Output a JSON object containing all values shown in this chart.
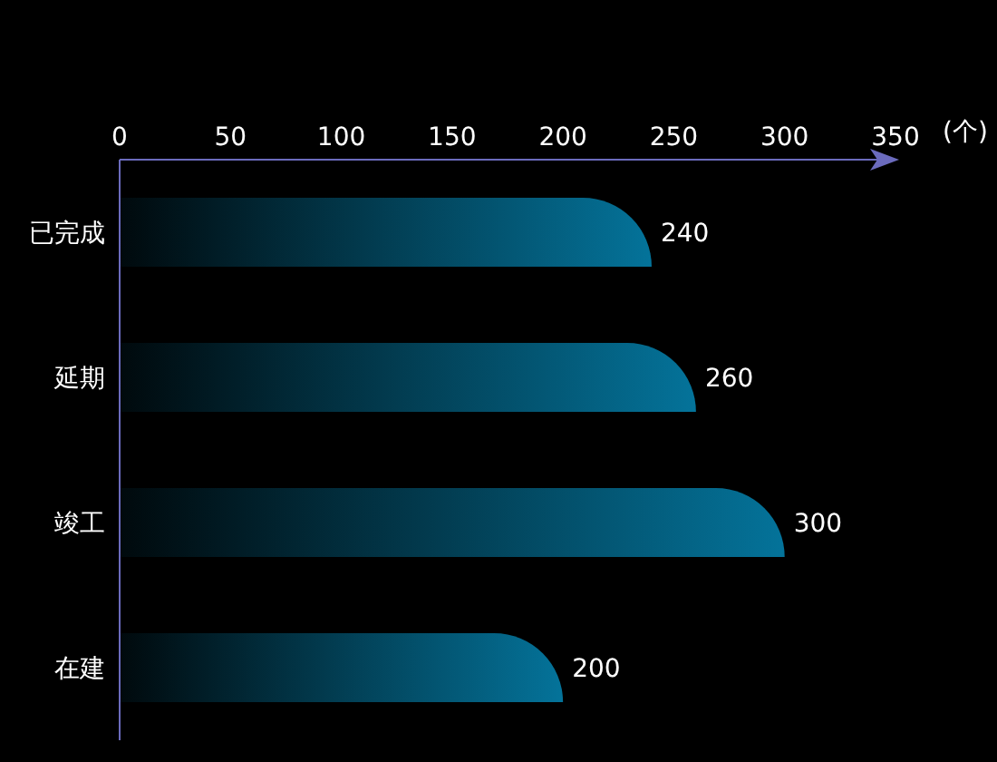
{
  "chart_data": {
    "type": "bar",
    "orientation": "horizontal",
    "xlabel": "(个)",
    "categories": [
      "已完成",
      "延期",
      "竣工",
      "在建"
    ],
    "values": [
      240,
      260,
      300,
      200
    ],
    "color": "#04739a",
    "xlim": [
      0,
      350
    ],
    "xticks": [
      0,
      50,
      100,
      150,
      200,
      250,
      300,
      350
    ],
    "grid": false,
    "legend": false,
    "data_labels": true
  }
}
